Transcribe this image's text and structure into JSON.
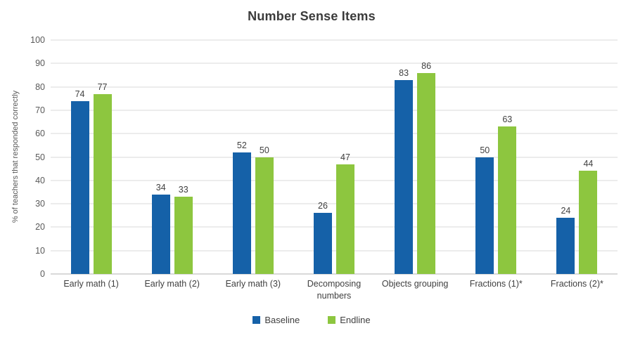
{
  "chart_data": {
    "type": "bar",
    "title": "Number Sense Items",
    "ylabel": "% of teachers that responded correctly",
    "xlabel": "",
    "ylim": [
      0,
      100
    ],
    "ytick_step": 10,
    "grid": true,
    "legend_position": "bottom",
    "categories": [
      "Early math (1)",
      "Early math (2)",
      "Early math (3)",
      "Decomposing numbers",
      "Objects grouping",
      "Fractions (1)*",
      "Fractions (2)*"
    ],
    "series": [
      {
        "name": "Baseline",
        "color": "#1561a8",
        "values": [
          74,
          34,
          52,
          26,
          83,
          50,
          24
        ]
      },
      {
        "name": "Endline",
        "color": "#8dc63f",
        "values": [
          77,
          33,
          50,
          47,
          86,
          63,
          44
        ]
      }
    ]
  },
  "colors": {
    "title_text": "#3b3b3b",
    "axis_text": "#595959",
    "label_text": "#3f3f3f",
    "gridline": "#d9d9d9",
    "axis_line": "#b3b3b3",
    "background": "#ffffff"
  }
}
